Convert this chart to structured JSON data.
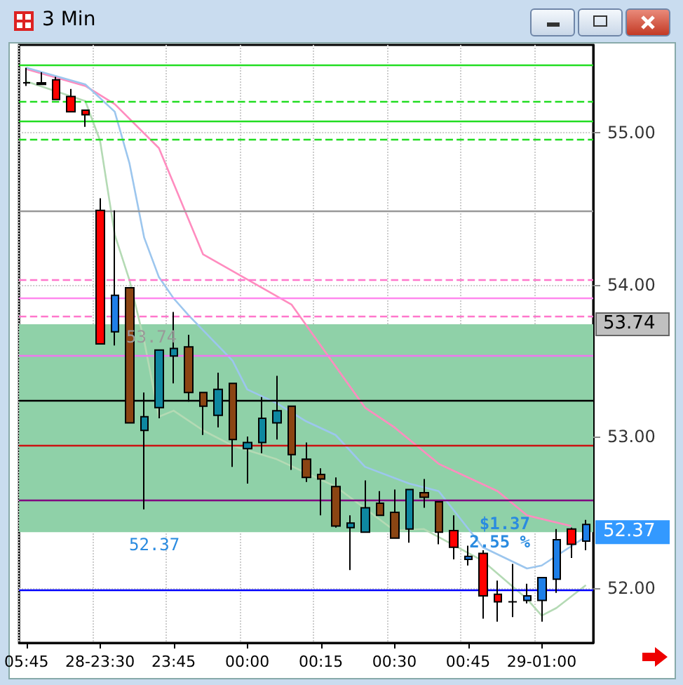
{
  "chart_data": {
    "type": "candlestick",
    "title": "3 Min",
    "categories": [
      "05:45",
      null,
      null,
      null,
      null,
      "28-23:30",
      null,
      null,
      null,
      null,
      "23:45",
      null,
      null,
      null,
      null,
      "00:00",
      null,
      null,
      null,
      null,
      "00:15",
      null,
      null,
      null,
      null,
      "00:30",
      null,
      null,
      null,
      null,
      "00:45",
      null,
      null,
      null,
      null,
      "29-01:00",
      null,
      null,
      null
    ],
    "ohlc": [
      [
        55.33,
        55.43,
        55.31,
        55.33
      ],
      [
        55.33,
        55.4,
        55.32,
        55.32
      ],
      [
        55.35,
        55.37,
        55.22,
        55.22
      ],
      [
        55.24,
        55.29,
        55.14,
        55.14
      ],
      [
        55.15,
        55.15,
        55.04,
        55.12
      ],
      [
        54.49,
        54.57,
        53.61,
        53.61
      ],
      [
        53.69,
        54.49,
        53.6,
        53.93
      ],
      [
        53.98,
        53.98,
        53.09,
        53.09
      ],
      [
        53.04,
        53.29,
        52.52,
        53.13
      ],
      [
        53.19,
        53.57,
        53.12,
        53.57
      ],
      [
        53.53,
        53.82,
        53.35,
        53.58
      ],
      [
        53.59,
        53.67,
        53.23,
        53.29
      ],
      [
        53.29,
        53.29,
        53.01,
        53.2
      ],
      [
        53.14,
        53.42,
        53.06,
        53.31
      ],
      [
        53.35,
        53.35,
        52.8,
        52.98
      ],
      [
        52.92,
        53.0,
        52.69,
        52.96
      ],
      [
        52.96,
        53.26,
        52.89,
        53.12
      ],
      [
        53.09,
        53.4,
        52.98,
        53.17
      ],
      [
        53.2,
        53.2,
        52.78,
        52.88
      ],
      [
        52.85,
        52.96,
        52.7,
        52.73
      ],
      [
        52.75,
        52.79,
        52.48,
        52.72
      ],
      [
        52.67,
        52.73,
        52.4,
        52.41
      ],
      [
        52.4,
        52.48,
        52.12,
        52.43
      ],
      [
        52.37,
        52.71,
        52.37,
        52.53
      ],
      [
        52.56,
        52.64,
        52.48,
        52.48
      ],
      [
        52.5,
        52.65,
        52.33,
        52.33
      ],
      [
        52.39,
        52.65,
        52.3,
        52.65
      ],
      [
        52.63,
        52.72,
        52.53,
        52.6
      ],
      [
        52.57,
        52.57,
        52.29,
        52.37
      ],
      [
        52.38,
        52.48,
        52.19,
        52.27
      ],
      [
        52.19,
        52.28,
        52.15,
        52.21
      ],
      [
        52.23,
        52.25,
        51.8,
        51.95
      ],
      [
        51.96,
        52.05,
        51.78,
        51.91
      ],
      [
        51.91,
        52.16,
        51.81,
        51.91
      ],
      [
        51.92,
        52.03,
        51.9,
        51.95
      ],
      [
        51.92,
        52.07,
        51.78,
        52.07
      ],
      [
        52.06,
        52.39,
        51.97,
        52.32
      ],
      [
        52.39,
        52.4,
        52.2,
        52.29
      ],
      [
        52.31,
        52.45,
        52.25,
        52.42
      ]
    ],
    "colors": [
      "#000000",
      "#000000",
      "#ff0000",
      "#ff0000",
      "#ff0000",
      "#ff0000",
      "#1e7fe8",
      "#8b4513",
      "#0e87a0",
      "#0e87a0",
      "#0e87a0",
      "#8b4513",
      "#8b4513",
      "#0e87a0",
      "#8b4513",
      "#0e87a0",
      "#0e87a0",
      "#0e87a0",
      "#8b4513",
      "#8b4513",
      "#8b4513",
      "#8b4513",
      "#0e87a0",
      "#0e87a0",
      "#8b4513",
      "#8b4513",
      "#0e87a0",
      "#8b4513",
      "#8b4513",
      "#ff0000",
      "#1e7fe8",
      "#ff0000",
      "#ff0000",
      "#000000",
      "#1e7fe8",
      "#1e7fe8",
      "#1e7fe8",
      "#ff0000",
      "#1e7fe8"
    ],
    "series": [
      {
        "type": "line",
        "color": "#ff8cbf",
        "values": [
          55.42,
          null,
          null,
          null,
          55.31,
          null,
          55.19,
          null,
          null,
          54.9,
          null,
          null,
          54.2,
          null,
          null,
          null,
          null,
          null,
          53.87,
          null,
          null,
          null,
          null,
          53.19,
          null,
          53.06,
          null,
          null,
          52.82,
          null,
          null,
          null,
          52.64,
          null,
          52.48,
          null,
          null,
          52.41,
          null
        ]
      },
      {
        "type": "line",
        "color": "#9cc6ee",
        "values": [
          55.43,
          null,
          null,
          null,
          55.32,
          null,
          55.14,
          54.8,
          54.31,
          54.05,
          53.91,
          53.8,
          null,
          null,
          53.5,
          53.31,
          null,
          53.22,
          null,
          53.1,
          null,
          53.01,
          null,
          52.8,
          null,
          null,
          52.69,
          null,
          52.64,
          null,
          null,
          52.27,
          null,
          null,
          52.13,
          52.15,
          null,
          null,
          52.34
        ]
      },
      {
        "type": "line",
        "color": "#b4dab4",
        "values": [
          55.34,
          null,
          null,
          null,
          55.21,
          54.95,
          54.33,
          54.03,
          53.63,
          53.13,
          53.17,
          null,
          53.04,
          null,
          52.94,
          null,
          null,
          52.85,
          null,
          null,
          null,
          52.67,
          null,
          null,
          null,
          52.38,
          null,
          52.39,
          null,
          null,
          null,
          52.18,
          null,
          null,
          51.93,
          51.82,
          51.87,
          null,
          52.02
        ]
      }
    ],
    "marker": "none",
    "ylim": [
      51.64,
      55.58
    ],
    "yticks": [
      {
        "value": 52,
        "label": "52.00"
      },
      {
        "value": 53,
        "label": "53.00"
      },
      {
        "value": 54,
        "label": "54.00"
      },
      {
        "value": 55,
        "label": "55.00"
      }
    ],
    "grid": true,
    "ref_lines": [
      {
        "axis": "y",
        "value": 55.45,
        "color": "#22dd22",
        "line_style": "solid"
      },
      {
        "axis": "y",
        "value": 55.21,
        "color": "#22dd22",
        "line_style": "dashed"
      },
      {
        "axis": "y",
        "value": 55.08,
        "color": "#22dd22",
        "line_style": "solid"
      },
      {
        "axis": "y",
        "value": 54.96,
        "color": "#22dd22",
        "line_style": "dashed"
      },
      {
        "axis": "y",
        "value": 54.49,
        "color": "#999999",
        "line_style": "solid"
      },
      {
        "axis": "y",
        "value": 54.03,
        "color": "#ff77cc",
        "line_style": "dashed"
      },
      {
        "axis": "y",
        "value": 53.91,
        "color": "#ff88ee",
        "line_style": "solid"
      },
      {
        "axis": "y",
        "value": 53.79,
        "color": "#ff77cc",
        "line_style": "dashed"
      },
      {
        "axis": "y",
        "value": 53.53,
        "color": "#ee77ee",
        "line_style": "solid"
      },
      {
        "axis": "y",
        "value": 53.24,
        "color": "#000000",
        "line_style": "solid"
      },
      {
        "axis": "y",
        "value": 52.94,
        "color": "#cc1111",
        "line_style": "solid"
      },
      {
        "axis": "y",
        "value": 52.58,
        "color": "#800080",
        "line_style": "solid"
      },
      {
        "axis": "y",
        "value": 51.99,
        "color": "#0000ff",
        "line_style": "solid"
      }
    ],
    "bands": [
      {
        "axis": "y",
        "from": 52.37,
        "to": 53.74,
        "color": "#8fd1a8"
      }
    ],
    "annotations": [
      "53.74",
      "52.37",
      "$1.37",
      "2.55 %"
    ]
  }
}
